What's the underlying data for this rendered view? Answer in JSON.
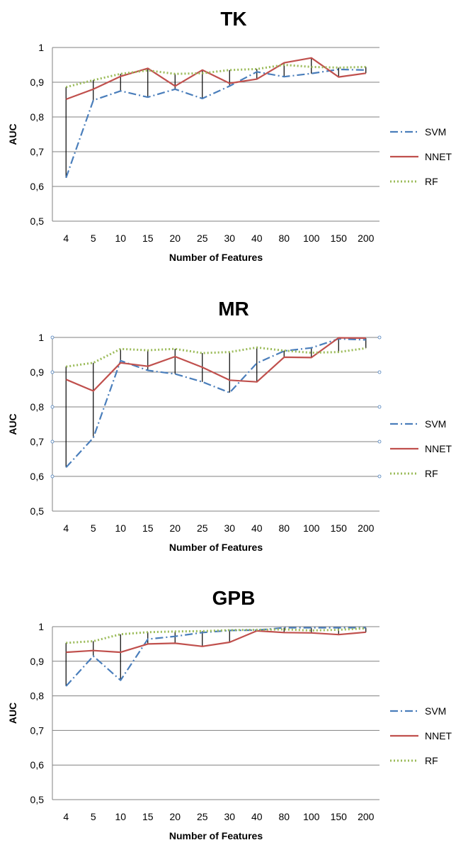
{
  "chart_data": [
    {
      "type": "line",
      "title": "TK",
      "xlabel": "Number of Features",
      "ylabel": "AUC",
      "categories": [
        "4",
        "5",
        "10",
        "15",
        "20",
        "25",
        "30",
        "40",
        "80",
        "100",
        "150",
        "200"
      ],
      "ylim": [
        0.5,
        1
      ],
      "yticks": [
        "0,5",
        "0,6",
        "0,7",
        "0,8",
        "0,9",
        "1"
      ],
      "grid": true,
      "legend_position": "right",
      "series": [
        {
          "name": "SVM",
          "color": "#4a7ebb",
          "style": "dashdot",
          "values": [
            0.625,
            0.848,
            0.875,
            0.857,
            0.88,
            0.853,
            0.889,
            0.93,
            0.916,
            0.925,
            0.937,
            0.935
          ]
        },
        {
          "name": "NNET",
          "color": "#c0504d",
          "style": "solid",
          "values": [
            0.851,
            0.88,
            0.917,
            0.94,
            0.889,
            0.935,
            0.897,
            0.909,
            0.956,
            0.97,
            0.915,
            0.926
          ]
        },
        {
          "name": "RF",
          "color": "#9bbb59",
          "style": "dotted",
          "values": [
            0.886,
            0.906,
            0.924,
            0.934,
            0.924,
            0.926,
            0.935,
            0.938,
            0.95,
            0.944,
            0.942,
            0.944
          ]
        }
      ]
    },
    {
      "type": "line",
      "title": "MR",
      "xlabel": "Number of Features",
      "ylabel": "AUC",
      "categories": [
        "4",
        "5",
        "10",
        "15",
        "20",
        "25",
        "30",
        "40",
        "80",
        "100",
        "150",
        "200"
      ],
      "ylim": [
        0.5,
        1
      ],
      "yticks": [
        "0,5",
        "0,6",
        "0,7",
        "0,8",
        "0,9",
        "1"
      ],
      "grid": true,
      "legend_position": "right",
      "series": [
        {
          "name": "SVM",
          "color": "#4a7ebb",
          "style": "dashdot",
          "values": [
            0.626,
            0.711,
            0.933,
            0.905,
            0.895,
            0.872,
            0.841,
            0.926,
            0.961,
            0.97,
            0.996,
            0.993
          ]
        },
        {
          "name": "NNET",
          "color": "#c0504d",
          "style": "solid",
          "values": [
            0.879,
            0.846,
            0.927,
            0.917,
            0.945,
            0.914,
            0.877,
            0.872,
            0.943,
            0.942,
            0.999,
            0.998
          ]
        },
        {
          "name": "RF",
          "color": "#9bbb59",
          "style": "dotted",
          "values": [
            0.916,
            0.927,
            0.967,
            0.963,
            0.967,
            0.955,
            0.958,
            0.971,
            0.962,
            0.956,
            0.958,
            0.969
          ]
        }
      ]
    },
    {
      "type": "line",
      "title": "GPB",
      "xlabel": "Number of Features",
      "ylabel": "AUC",
      "categories": [
        "4",
        "5",
        "10",
        "15",
        "20",
        "25",
        "30",
        "40",
        "80",
        "100",
        "150",
        "200"
      ],
      "ylim": [
        0.5,
        1
      ],
      "yticks": [
        "0,5",
        "0,6",
        "0,7",
        "0,8",
        "0,9",
        "1"
      ],
      "grid": true,
      "legend_position": "right",
      "series": [
        {
          "name": "SVM",
          "color": "#4a7ebb",
          "style": "dashdot",
          "values": [
            0.828,
            0.915,
            0.845,
            0.964,
            0.972,
            0.983,
            0.989,
            0.99,
            0.997,
            0.997,
            0.997,
            0.997
          ]
        },
        {
          "name": "NNET",
          "color": "#c0504d",
          "style": "solid",
          "values": [
            0.926,
            0.931,
            0.926,
            0.95,
            0.952,
            0.943,
            0.955,
            0.988,
            0.983,
            0.982,
            0.977,
            0.984
          ]
        },
        {
          "name": "RF",
          "color": "#9bbb59",
          "style": "dotted",
          "values": [
            0.953,
            0.958,
            0.978,
            0.984,
            0.986,
            0.987,
            0.99,
            0.991,
            0.992,
            0.989,
            0.991,
            0.995
          ]
        }
      ]
    }
  ]
}
